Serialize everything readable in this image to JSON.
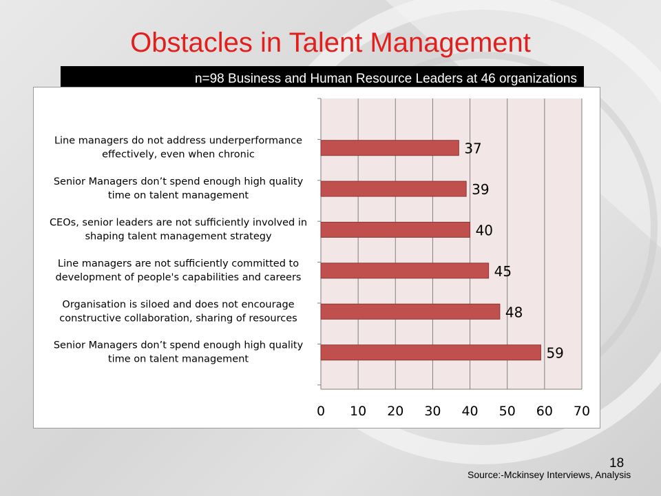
{
  "slide": {
    "title": "Obstacles in Talent Management",
    "subtitle": "n=98 Business and Human Resource Leaders at 46 organizations",
    "page_number": "18",
    "source": "Source:-Mckinsey Interviews, Analysis"
  },
  "colors": {
    "title": "#e1201e",
    "bar": "#c0504d",
    "bar_border": "#8c3836",
    "plot_background": "#f3e6e6"
  },
  "chart_data": {
    "type": "bar",
    "orientation": "horizontal",
    "categories": [
      [
        "Line managers do not address underperformance",
        "effectively, even when chronic"
      ],
      [
        "Senior Managers don’t spend enough high quality",
        "time on talent management"
      ],
      [
        "CEOs, senior leaders are not sufficiently involved in",
        "shaping talent management strategy"
      ],
      [
        "Line managers are not sufficiently committed to",
        "development of people's capabilities and careers"
      ],
      [
        "Organisation is siloed and does not encourage",
        "constructive collaboration, sharing of resources"
      ],
      [
        "Senior Managers don’t spend enough high quality",
        "time on talent management"
      ]
    ],
    "values": [
      37,
      39,
      40,
      45,
      48,
      59
    ],
    "xlim": [
      0,
      70
    ],
    "xticks": [
      "0",
      "10",
      "20",
      "30",
      "40",
      "50",
      "60",
      "70"
    ],
    "grid": true,
    "data_labels": true
  }
}
